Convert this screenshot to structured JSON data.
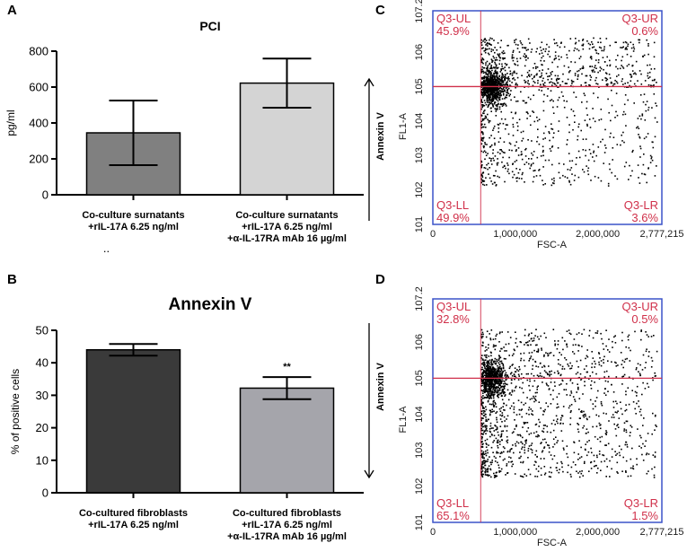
{
  "chart_data": [
    {
      "panel": "A",
      "type": "bar",
      "title": "PCI",
      "ylabel": "pg/ml",
      "xlabel": "",
      "ylim": [
        0,
        800
      ],
      "yticks": [
        0,
        200,
        400,
        600,
        800
      ],
      "categories": [
        [
          "Co-culture surnatants",
          "+rIL-17A 6.25 ng/ml"
        ],
        [
          "Co-culture surnatants",
          "+rIL-17A 6.25 ng/ml",
          "+α-IL-17RA mAb 16 µg/ml"
        ]
      ],
      "values": [
        345,
        622
      ],
      "errors": [
        180,
        137
      ],
      "bar_colors": [
        "#808080",
        "#d4d4d4"
      ],
      "annotations": [],
      "stray_mark": "..",
      "grid": false
    },
    {
      "panel": "B",
      "type": "bar",
      "title": "Annexin V",
      "ylabel": "% of positive cells",
      "xlabel": "",
      "ylim": [
        0,
        50
      ],
      "yticks": [
        0,
        10,
        20,
        30,
        40,
        50
      ],
      "categories": [
        [
          "Co-cultured fibroblasts",
          "+rIL-17A 6.25 ng/ml"
        ],
        [
          "Co-cultured fibroblasts",
          "+rIL-17A 6.25 ng/ml",
          "+α-IL-17RA mAb 16 µg/ml"
        ]
      ],
      "values": [
        44,
        32.2
      ],
      "errors": [
        1.8,
        3.4
      ],
      "bar_colors": [
        "#3a3a3a",
        "#a5a5ab"
      ],
      "annotations": [
        "",
        "**"
      ],
      "grid": false
    },
    {
      "panel": "C",
      "type": "scatter",
      "title": "",
      "side_label": "Annexin V",
      "xlabel": "FSC-A",
      "ylabel": "FL1-A",
      "xlim": [
        0,
        2777215
      ],
      "xticks": [
        "0",
        "1,000,000",
        "2,000,000",
        "2,777,215"
      ],
      "ylim_log10": [
        1,
        7.2
      ],
      "yticks": [
        "10^1",
        "10^2",
        "10^3",
        "10^4",
        "10^5",
        "10^6",
        "10^7.2"
      ],
      "gate": {
        "x": 580000,
        "y_log10": 5
      },
      "quadrants": [
        {
          "name": "Q3-UL",
          "percent": "45.9%"
        },
        {
          "name": "Q3-UR",
          "percent": "0.6%"
        },
        {
          "name": "Q3-LL",
          "percent": "49.9%"
        },
        {
          "name": "Q3-LR",
          "percent": "3.6%"
        }
      ],
      "gate_color": "#d0304a",
      "frame_color": "#3a52c8"
    },
    {
      "panel": "D",
      "type": "scatter",
      "title": "",
      "side_label": "Annexin V",
      "xlabel": "FSC-A",
      "ylabel": "FL1-A",
      "xlim": [
        0,
        2777215
      ],
      "xticks": [
        "0",
        "1,000,000",
        "2,000,000",
        "2,777,215"
      ],
      "ylim_log10": [
        1,
        7.2
      ],
      "yticks": [
        "10^1",
        "10^2",
        "10^3",
        "10^4",
        "10^5",
        "10^6",
        "10^7.2"
      ],
      "gate": {
        "x": 580000,
        "y_log10": 5
      },
      "quadrants": [
        {
          "name": "Q3-UL",
          "percent": "32.8%"
        },
        {
          "name": "Q3-UR",
          "percent": "0.5%"
        },
        {
          "name": "Q3-LL",
          "percent": "65.1%"
        },
        {
          "name": "Q3-LR",
          "percent": "1.5%"
        }
      ],
      "gate_color": "#d0304a",
      "frame_color": "#3a52c8"
    }
  ]
}
